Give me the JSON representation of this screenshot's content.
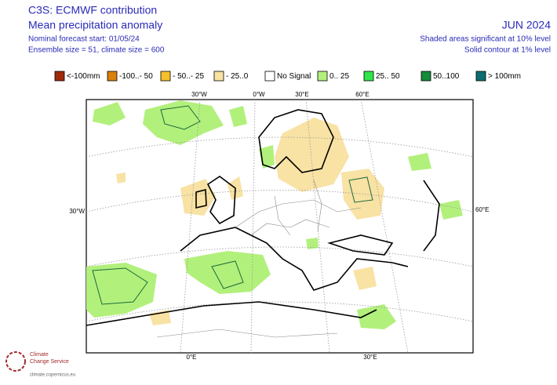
{
  "header": {
    "title": "C3S: ECMWF contribution",
    "subtitle": "Mean precipitation anomaly",
    "forecast_start": "Nominal forecast start: 01/05/24",
    "ensemble": "Ensemble size = 51, climate size = 600",
    "month": "JUN 2024",
    "note_shaded": "Shaded areas significant at 10% level",
    "note_contour": "Solid contour at 1% level"
  },
  "legend": [
    {
      "label": "<-100mm",
      "color": "#a0290c"
    },
    {
      "label": "-100..- 50",
      "color": "#d8800e"
    },
    {
      "label": "- 50..- 25",
      "color": "#f5c12b"
    },
    {
      "label": "- 25..0",
      "color": "#f8e2a4"
    },
    {
      "label": "No Signal",
      "color": "#ffffff"
    },
    {
      "label": "0.. 25",
      "color": "#b2f07c"
    },
    {
      "label": "25.. 50",
      "color": "#2fe64b"
    },
    {
      "label": "50..100",
      "color": "#148a3a"
    },
    {
      "label": "> 100mm",
      "color": "#0c6c72"
    }
  ],
  "graticule": {
    "top": [
      "30°W",
      "0°W",
      "30°E",
      "60°E"
    ],
    "left": "30°W",
    "right": "60°E",
    "bottom": [
      "0°E",
      "30°E"
    ]
  },
  "logo": {
    "line1": "Climate",
    "line2": "Change Service",
    "url": "climate.copernicus.eu"
  }
}
